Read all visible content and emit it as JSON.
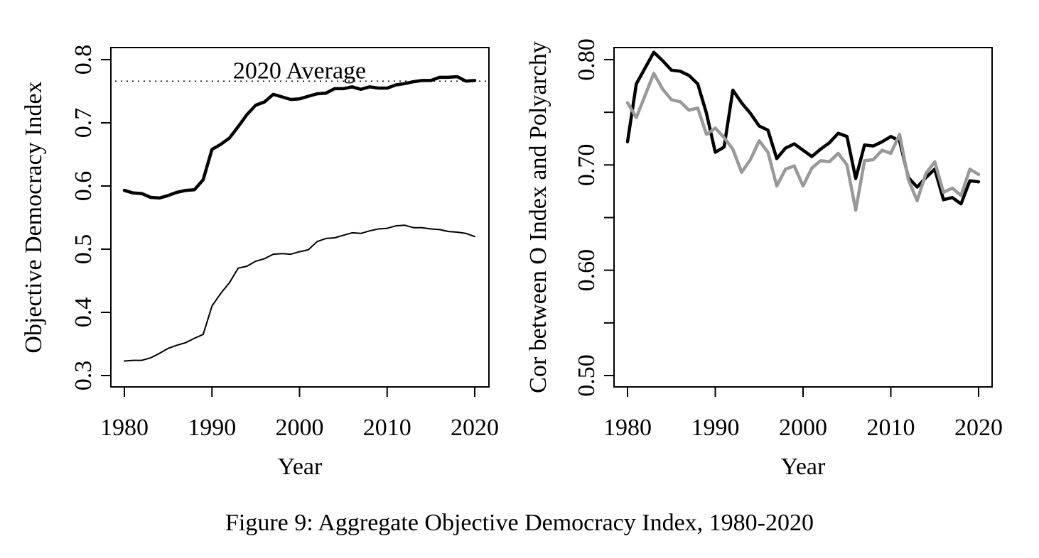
{
  "caption": "Figure 9: Aggregate Objective Democracy Index, 1980-2020",
  "colors": {
    "black": "#000000",
    "gray": "#999999"
  },
  "chart_data": [
    {
      "type": "line",
      "title": "",
      "xlabel": "Year",
      "ylabel": "Objective Democracy Index",
      "xlim": [
        1980,
        2020
      ],
      "ylim": [
        0.3,
        0.8
      ],
      "xticks": [
        1980,
        1990,
        2000,
        2010,
        2020
      ],
      "xtick_labels": [
        "1980",
        "1990",
        "2000",
        "2010",
        "2020"
      ],
      "yticks": [
        0.3,
        0.4,
        0.5,
        0.6,
        0.7,
        0.8
      ],
      "ytick_labels": [
        "0.3",
        "0.4",
        "0.5",
        "0.6",
        "0.7",
        "0.8"
      ],
      "grid": false,
      "reference_line": {
        "y": 0.766,
        "style": "dotted",
        "label": "2020 Average"
      },
      "x": [
        1980,
        1981,
        1982,
        1983,
        1984,
        1985,
        1986,
        1987,
        1988,
        1989,
        1990,
        1991,
        1992,
        1993,
        1994,
        1995,
        1996,
        1997,
        1998,
        1999,
        2000,
        2001,
        2002,
        2003,
        2004,
        2005,
        2006,
        2007,
        2008,
        2009,
        2010,
        2011,
        2012,
        2013,
        2014,
        2015,
        2016,
        2017,
        2018,
        2019,
        2020
      ],
      "series": [
        {
          "color": "#000000",
          "width": "thick",
          "values": [
            0.593,
            0.589,
            0.588,
            0.582,
            0.581,
            0.585,
            0.59,
            0.593,
            0.594,
            0.61,
            0.658,
            0.666,
            0.676,
            0.694,
            0.713,
            0.728,
            0.733,
            0.745,
            0.741,
            0.737,
            0.738,
            0.742,
            0.746,
            0.747,
            0.754,
            0.754,
            0.757,
            0.753,
            0.757,
            0.755,
            0.755,
            0.76,
            0.762,
            0.765,
            0.767,
            0.767,
            0.772,
            0.772,
            0.773,
            0.766,
            0.767
          ]
        },
        {
          "color": "#000000",
          "width": "thin",
          "values": [
            0.323,
            0.324,
            0.324,
            0.328,
            0.335,
            0.343,
            0.348,
            0.352,
            0.359,
            0.365,
            0.41,
            0.43,
            0.447,
            0.47,
            0.473,
            0.481,
            0.485,
            0.492,
            0.493,
            0.492,
            0.496,
            0.499,
            0.512,
            0.517,
            0.518,
            0.522,
            0.526,
            0.525,
            0.529,
            0.532,
            0.533,
            0.537,
            0.538,
            0.534,
            0.534,
            0.532,
            0.531,
            0.528,
            0.527,
            0.525,
            0.52
          ]
        }
      ]
    },
    {
      "type": "line",
      "title": "",
      "xlabel": "Year",
      "ylabel": "Cor between O Index and Polyarchy",
      "xlim": [
        1980,
        2020
      ],
      "ylim": [
        0.5,
        0.8
      ],
      "xticks": [
        1980,
        1990,
        2000,
        2010,
        2020
      ],
      "xtick_labels": [
        "1980",
        "1990",
        "2000",
        "2010",
        "2020"
      ],
      "yticks": [
        0.5,
        0.55,
        0.6,
        0.65,
        0.7,
        0.75,
        0.8
      ],
      "ytick_labels": [
        "0.50",
        "",
        "0.60",
        "",
        "0.70",
        "",
        "0.80"
      ],
      "grid": false,
      "x": [
        1980,
        1981,
        1982,
        1983,
        1984,
        1985,
        1986,
        1987,
        1988,
        1989,
        1990,
        1991,
        1992,
        1993,
        1994,
        1995,
        1996,
        1997,
        1998,
        1999,
        2000,
        2001,
        2002,
        2003,
        2004,
        2005,
        2006,
        2007,
        2008,
        2009,
        2010,
        2011,
        2012,
        2013,
        2014,
        2015,
        2016,
        2017,
        2018,
        2019,
        2020
      ],
      "series": [
        {
          "color": "#000000",
          "width": "thick",
          "values": [
            0.722,
            0.777,
            0.792,
            0.807,
            0.799,
            0.79,
            0.789,
            0.785,
            0.777,
            0.749,
            0.712,
            0.717,
            0.771,
            0.759,
            0.749,
            0.737,
            0.733,
            0.706,
            0.716,
            0.72,
            0.714,
            0.708,
            0.715,
            0.721,
            0.73,
            0.727,
            0.687,
            0.719,
            0.718,
            0.722,
            0.727,
            0.723,
            0.688,
            0.679,
            0.688,
            0.696,
            0.667,
            0.669,
            0.663,
            0.685,
            0.684
          ]
        },
        {
          "color": "#999999",
          "width": "thick",
          "values": [
            0.759,
            0.745,
            0.766,
            0.787,
            0.772,
            0.762,
            0.76,
            0.752,
            0.754,
            0.729,
            0.735,
            0.726,
            0.715,
            0.693,
            0.705,
            0.723,
            0.712,
            0.68,
            0.696,
            0.699,
            0.68,
            0.697,
            0.704,
            0.703,
            0.711,
            0.7,
            0.657,
            0.704,
            0.705,
            0.714,
            0.711,
            0.729,
            0.686,
            0.666,
            0.692,
            0.703,
            0.674,
            0.678,
            0.671,
            0.696,
            0.691
          ]
        }
      ]
    }
  ]
}
